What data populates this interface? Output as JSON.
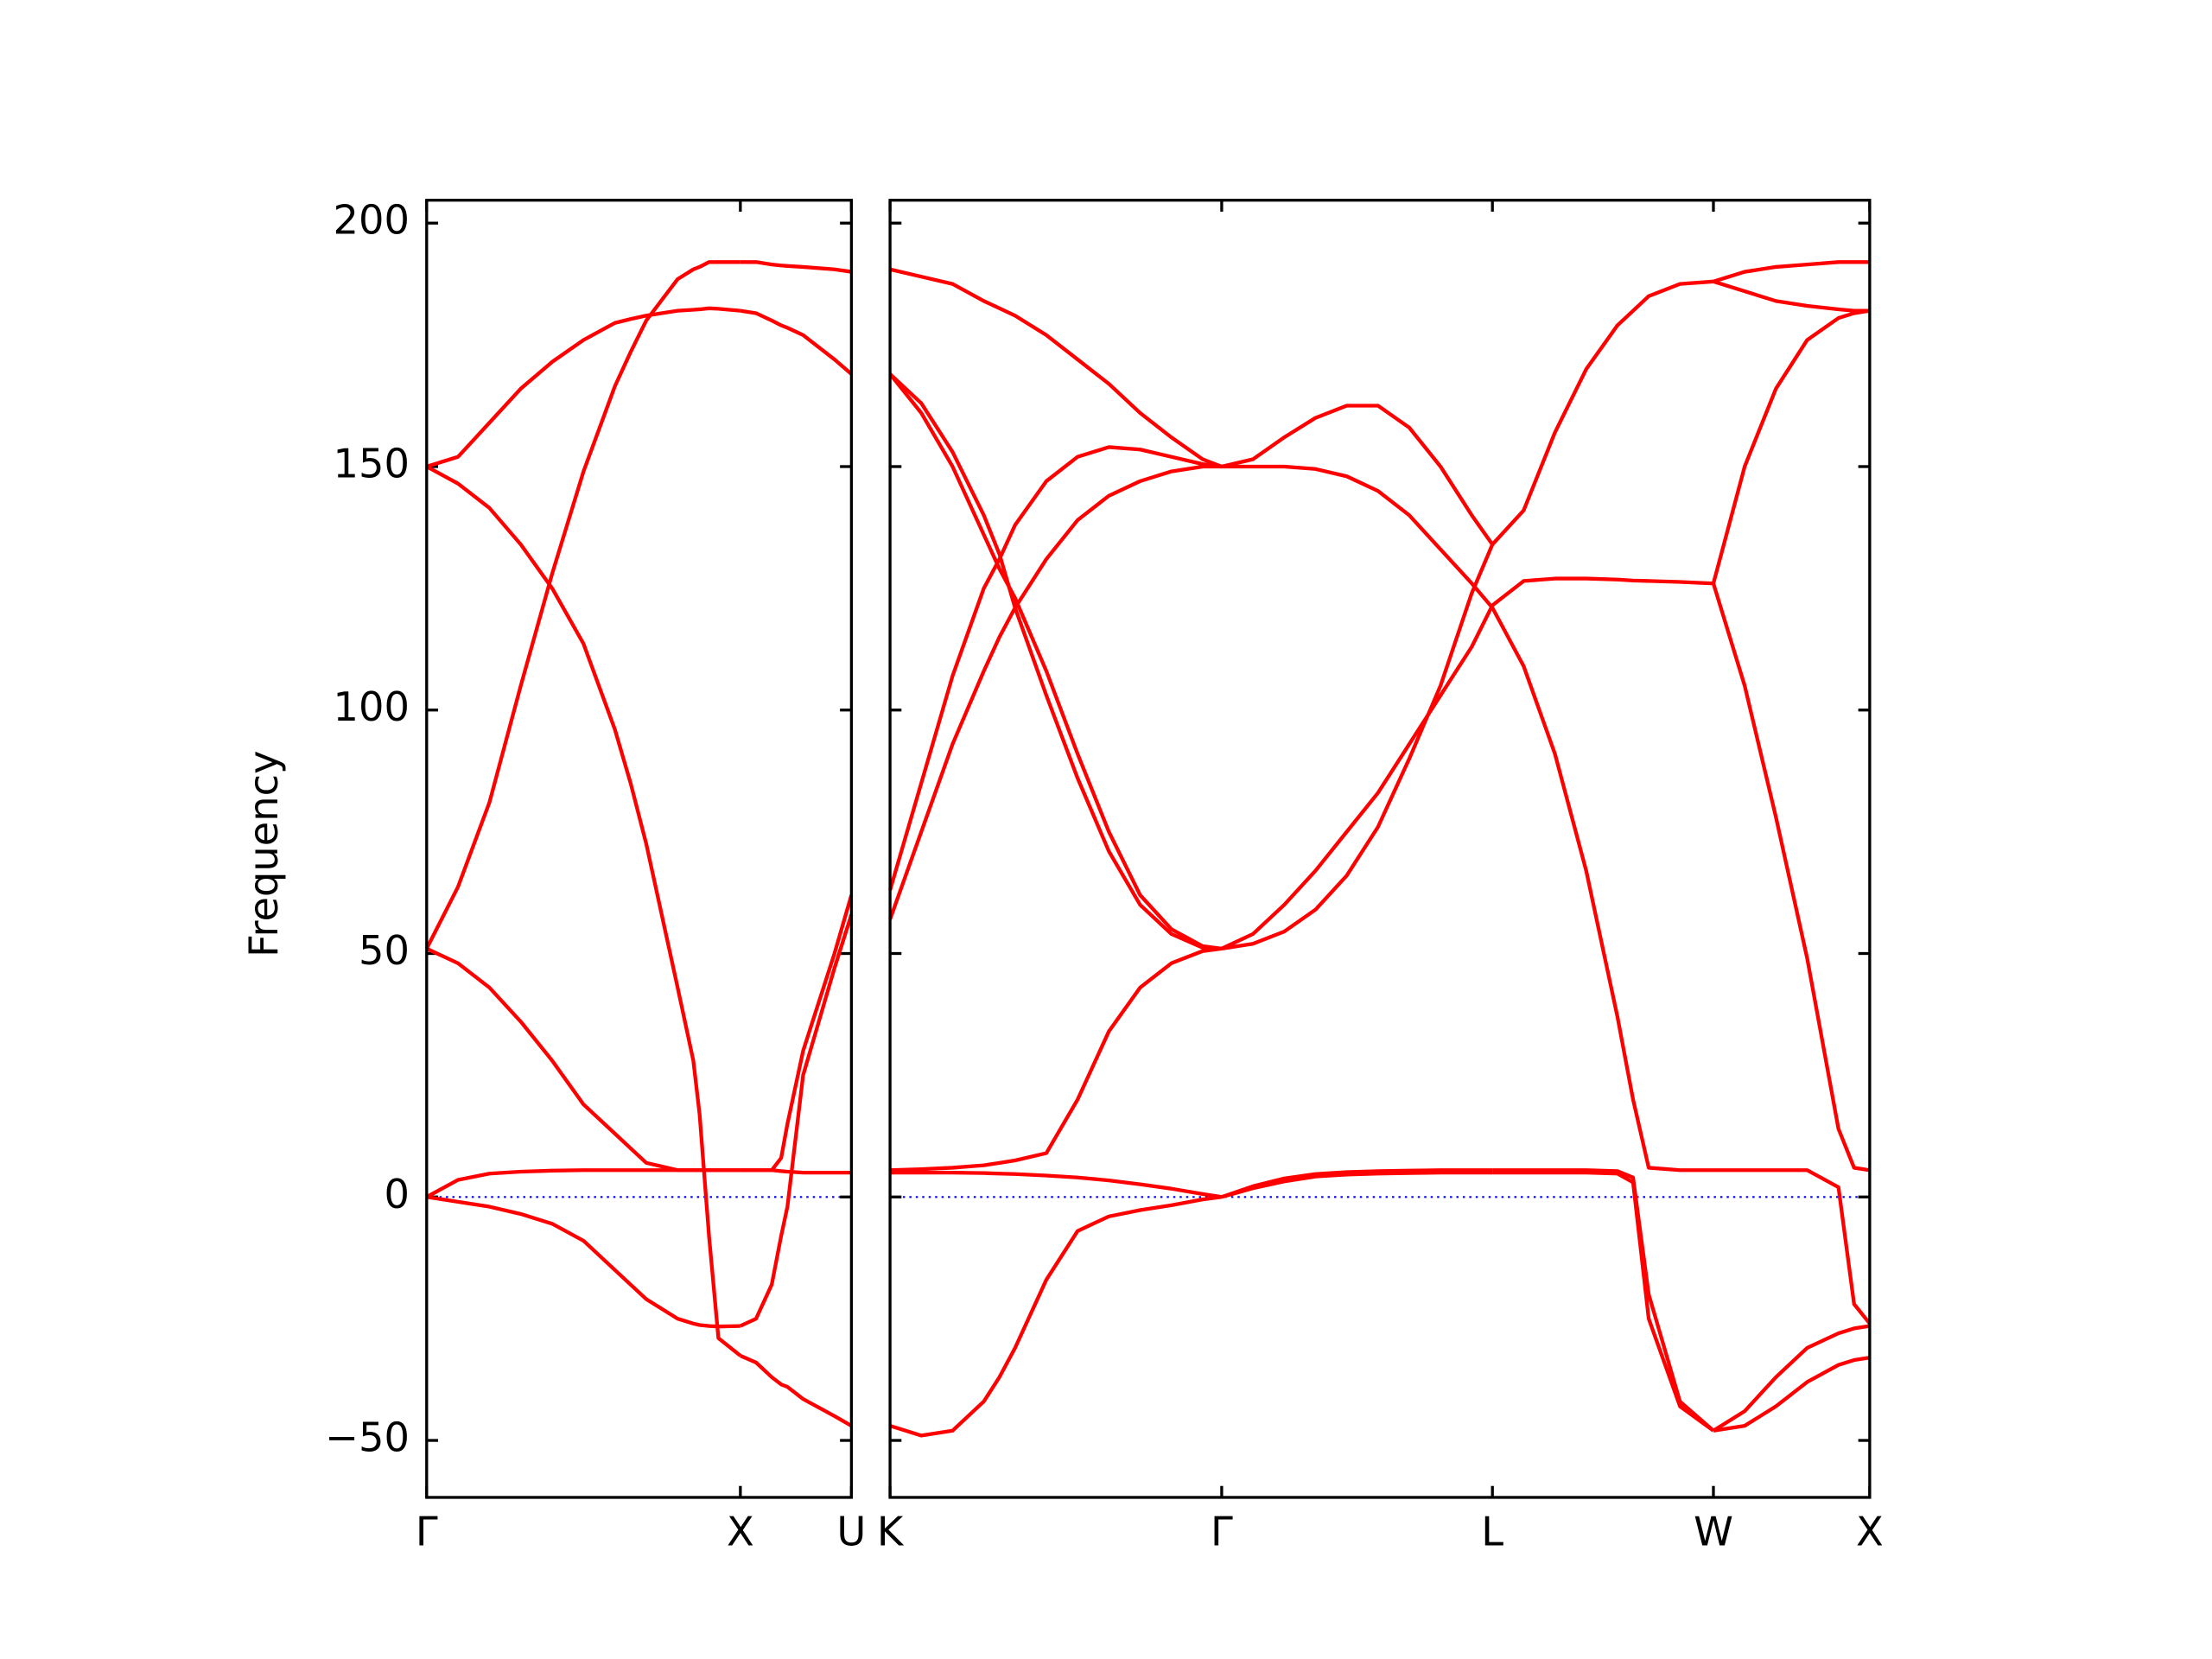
{
  "chart_data": [
    {
      "type": "line",
      "ylabel": "Frequency",
      "color": "#ff0000",
      "zero_line_color": "#0000ff",
      "xlim": [
        0,
        1.354
      ],
      "ylim": [
        -61.7,
        204.7
      ],
      "xticks": [
        {
          "value": 0,
          "label": "Γ"
        },
        {
          "value": 1,
          "label": "X"
        },
        {
          "value": 1.354,
          "label": "U"
        }
      ],
      "yticks": [
        {
          "value": -50,
          "label": "−50"
        },
        0,
        50,
        100,
        150,
        200
      ],
      "segments": [
        {
          "x": [
            0,
            0.1,
            0.2,
            0.3,
            0.4,
            0.5,
            0.6,
            0.65,
            0.7,
            0.8,
            0.85,
            0.87,
            0.9,
            0.93,
            1.0
          ],
          "series": [
            {
              "values": [
                150,
                152,
                159,
                166,
                171.5,
                176,
                179.5,
                180.3,
                181,
                182,
                182.2,
                182.3,
                182.5,
                182.4,
                182
              ]
            },
            {
              "values": [
                51,
                63.7,
                81,
                105,
                128,
                149,
                166.5,
                173.5,
                180,
                188.5,
                190.5,
                191,
                192,
                192,
                192
              ]
            },
            {
              "values": [
                150,
                146.5,
                141.5,
                134,
                125,
                113.6,
                96,
                85,
                72.5,
                43,
                28,
                17,
                -8,
                -29,
                -32.6
              ]
            },
            {
              "values": [
                51,
                48,
                43,
                36,
                28,
                19,
                13,
                10,
                7,
                5.5,
                5.5,
                5.5,
                5.5,
                5.5,
                5.5
              ]
            },
            {
              "values": [
                0,
                3.5,
                4.8,
                5.2,
                5.4,
                5.5,
                5.5,
                5.5,
                5.5,
                5.5,
                5.5,
                5.5,
                5.5,
                5.5,
                5.5
              ]
            },
            {
              "values": [
                0,
                -1,
                -2,
                -3.5,
                -5.5,
                -9,
                -15,
                -18,
                -21,
                -25,
                -26,
                -26.3,
                -26.5,
                -26.6,
                -26.5
              ]
            }
          ]
        },
        {
          "x": [
            1.0,
            1.05,
            1.1,
            1.13,
            1.15,
            1.2,
            1.3,
            1.354
          ],
          "series": [
            {
              "values": [
                182,
                181.5,
                180,
                179,
                178.5,
                177,
                172,
                169
              ]
            },
            {
              "values": [
                192,
                192,
                191.5,
                191.3,
                191.2,
                191,
                190.5,
                190
              ]
            },
            {
              "values": [
                -32.6,
                -34,
                -37,
                -38.5,
                -39,
                -41.5,
                -45,
                -47
              ]
            },
            {
              "values": [
                5.5,
                5.5,
                5.5,
                8,
                15,
                30,
                50,
                62
              ]
            },
            {
              "values": [
                5.5,
                5.5,
                5.5,
                5.3,
                5.2,
                5,
                5,
                5
              ]
            },
            {
              "values": [
                -26.5,
                -25,
                -18,
                -8,
                -2,
                25,
                47,
                58
              ]
            }
          ]
        }
      ]
    },
    {
      "type": "line",
      "sharey": true,
      "color": "#ff0000",
      "zero_line_color": "#0000ff",
      "xlim": [
        0,
        3.134
      ],
      "xticks": [
        {
          "value": 0,
          "label": "K"
        },
        {
          "value": 1.061,
          "label": "Γ"
        },
        {
          "value": 1.927,
          "label": "L"
        },
        {
          "value": 2.634,
          "label": "W"
        },
        {
          "value": 3.134,
          "label": "X"
        }
      ],
      "segments": [
        {
          "x": [
            0,
            0.1,
            0.2,
            0.3,
            0.35,
            0.4,
            0.5,
            0.6,
            0.7,
            0.8,
            0.9,
            1.0,
            1.061
          ],
          "series": [
            {
              "values": [
                190.5,
                189,
                187.5,
                184,
                182.5,
                181,
                177,
                172,
                167,
                161,
                156,
                151.5,
                150
              ]
            },
            {
              "values": [
                169,
                163,
                153,
                140,
                132,
                121,
                103,
                86,
                71,
                60,
                54,
                51.2,
                51
              ]
            },
            {
              "values": [
                169,
                161,
                150,
                136,
                129,
                123,
                108,
                91,
                75,
                62,
                55,
                51.5,
                51
              ]
            },
            {
              "values": [
                63,
                85,
                107,
                125,
                131,
                138,
                147,
                152,
                154,
                153.5,
                152,
                150.5,
                150
              ]
            },
            {
              "values": [
                57,
                75,
                93,
                108,
                115,
                121,
                131,
                139,
                144,
                147,
                149,
                150,
                150
              ]
            },
            {
              "values": [
                -47,
                -49,
                -48,
                -42,
                -37,
                -31,
                -17,
                -7,
                -4,
                -2.7,
                -1.7,
                -0.5,
                0
              ]
            },
            {
              "values": [
                5.5,
                5.7,
                6,
                6.5,
                7,
                7.5,
                9,
                20,
                34,
                43,
                48,
                50.5,
                51
              ]
            },
            {
              "values": [
                5,
                5,
                5,
                4.9,
                4.8,
                4.7,
                4.4,
                4,
                3.4,
                2.6,
                1.7,
                0.6,
                0
              ]
            }
          ]
        },
        {
          "x": [
            1.061,
            1.161,
            1.261,
            1.361,
            1.461,
            1.561,
            1.661,
            1.761,
            1.861,
            1.927
          ],
          "series": [
            {
              "values": [
                150,
                151.5,
                156,
                160,
                162.5,
                162.5,
                158,
                150,
                140,
                134
              ]
            },
            {
              "values": [
                150,
                150,
                150,
                149.5,
                148,
                145,
                140,
                133,
                126,
                121
              ]
            },
            {
              "values": [
                51,
                54,
                60,
                67,
                75,
                83,
                93,
                103,
                113,
                121.5
              ]
            },
            {
              "values": [
                51,
                52,
                54.5,
                59,
                66,
                76,
                90,
                105,
                124,
                134
              ]
            },
            {
              "values": [
                0,
                2.2,
                3.8,
                4.7,
                5.1,
                5.3,
                5.4,
                5.5,
                5.5,
                5.5
              ]
            },
            {
              "values": [
                0,
                1.8,
                3.2,
                4.2,
                4.6,
                4.8,
                4.9,
                5,
                5,
                5
              ]
            }
          ]
        },
        {
          "x": [
            1.927,
            2.027,
            2.127,
            2.227,
            2.327,
            2.377,
            2.427,
            2.527,
            2.634
          ],
          "series": [
            {
              "values": [
                134,
                141,
                157,
                170,
                179,
                182,
                185,
                187.5,
                188
              ]
            },
            {
              "values": [
                121.5,
                126.5,
                127,
                127,
                126.8,
                126.6,
                126.5,
                126.3,
                126
              ]
            },
            {
              "values": [
                121,
                109,
                91,
                67,
                37,
                20,
                6,
                5.5,
                5.5
              ]
            },
            {
              "values": [
                5,
                5,
                5,
                5,
                4.8,
                3,
                -25,
                -43,
                -48
              ]
            },
            {
              "values": [
                5.5,
                5.5,
                5.5,
                5.5,
                5.3,
                4,
                -20,
                -42,
                -48
              ]
            }
          ]
        },
        {
          "x": [
            2.634,
            2.734,
            2.834,
            2.934,
            3.034,
            3.084,
            3.134
          ],
          "series": [
            {
              "values": [
                188,
                190,
                191,
                191.5,
                192,
                192,
                192
              ]
            },
            {
              "values": [
                188,
                186,
                184,
                183,
                182.3,
                182,
                182
              ]
            },
            {
              "values": [
                126,
                150,
                166,
                176,
                180.5,
                181.5,
                182
              ]
            },
            {
              "values": [
                126,
                105,
                78,
                49,
                14,
                6,
                5.5
              ]
            },
            {
              "values": [
                5.5,
                5.5,
                5.5,
                5.5,
                2,
                -22,
                -26
              ]
            },
            {
              "values": [
                -48,
                -44,
                -37,
                -31,
                -28,
                -27,
                -26.5
              ]
            },
            {
              "values": [
                -48,
                -47,
                -43,
                -38,
                -34.5,
                -33.5,
                -33
              ]
            }
          ]
        }
      ]
    }
  ]
}
